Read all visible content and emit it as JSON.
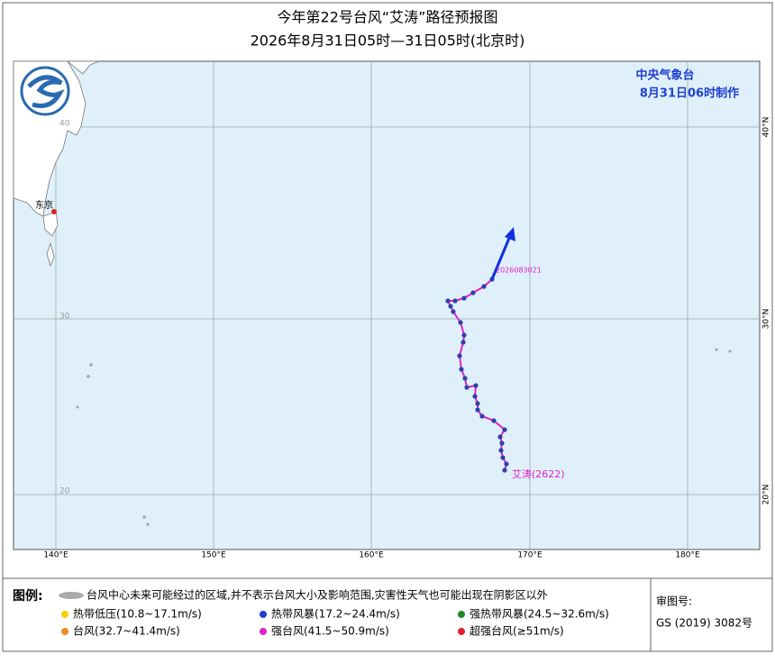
{
  "header": {
    "title": "今年第22号台风“艾涛”路径预报图",
    "subtitle": "2026年8月31日05时—31日05时(北京时)"
  },
  "issuer": {
    "name": "中央气象台",
    "time": "8月31日06时制作"
  },
  "map": {
    "lon_labels": [
      "140°E",
      "150°E",
      "160°E",
      "170°E",
      "180°E"
    ],
    "lat_labels": [
      "40°N",
      "30°N",
      "20°N"
    ],
    "lat_inner_labels": [
      "40",
      "30",
      "20"
    ],
    "city": "东京",
    "track_time": "2026083021",
    "typhoon_name": "艾涛(2622)"
  },
  "legend": {
    "title": "图例:",
    "cone": "台风中心未来可能经过的区域,并不表示台风大小及影响范围,灾害性天气也可能出现在阴影区以外",
    "items": [
      {
        "label": "热带低压(10.8~17.1m/s)",
        "color": "#f5d000"
      },
      {
        "label": "热带风暴(17.2~24.4m/s)",
        "color": "#1f3fd0"
      },
      {
        "label": "强热带风暴(24.5~32.6m/s)",
        "color": "#1f8a2a"
      },
      {
        "label": "台风(32.7~41.4m/s)",
        "color": "#f08a20"
      },
      {
        "label": "强台风(41.5~50.9m/s)",
        "color": "#e020c8"
      },
      {
        "label": "超强台风(≥51m/s)",
        "color": "#e0202a"
      }
    ],
    "review_label": "审图号:",
    "review_number": "GS (2019) 3082号"
  }
}
